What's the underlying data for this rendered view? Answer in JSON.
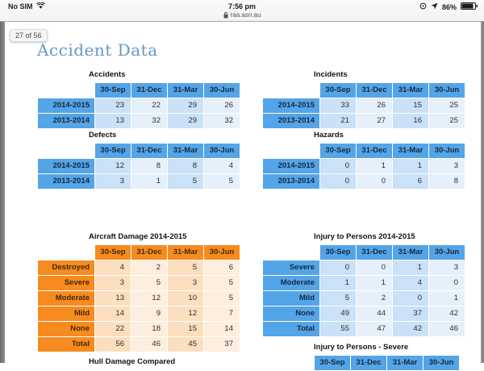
{
  "status_bar": {
    "carrier": "No SIM",
    "time": "7:56 pm",
    "url": "raa.asn.au",
    "battery_percent": "86%",
    "icons": [
      "wifi-icon",
      "lock-icon",
      "orientation-lock-icon",
      "location-arrow-icon",
      "battery-icon"
    ]
  },
  "page": {
    "page_indicator": "27 of 56",
    "title": "Accident Data",
    "clipped_left_heading": "Hull Damage Compared"
  },
  "colors": {
    "title_color": "#6598c8",
    "blue_header": "#54a4e8",
    "blue_cell_a": "#cae1f7",
    "blue_cell_b": "#e5f0fb",
    "orange_header": "#f68b1f",
    "orange_cell_a": "#fbdfbe",
    "orange_cell_b": "#fdeedd"
  },
  "tables": [
    {
      "id": "accidents",
      "title": "Accidents",
      "theme": "blue",
      "columns": [
        "30-Sep",
        "31-Dec",
        "31-Mar",
        "30-Jun"
      ],
      "rows": [
        {
          "label": "2014-2015",
          "values": [
            "23",
            "22",
            "29",
            "26"
          ]
        },
        {
          "label": "2013-2014",
          "values": [
            "13",
            "32",
            "29",
            "32"
          ]
        }
      ]
    },
    {
      "id": "incidents",
      "title": "Incidents",
      "theme": "blue",
      "columns": [
        "30-Sep",
        "31-Dec",
        "31-Mar",
        "30-Jun"
      ],
      "rows": [
        {
          "label": "2014-2015",
          "values": [
            "33",
            "26",
            "15",
            "25"
          ]
        },
        {
          "label": "2013-2014",
          "values": [
            "21",
            "27",
            "16",
            "25"
          ]
        }
      ]
    },
    {
      "id": "defects",
      "title": "Defects",
      "theme": "blue",
      "columns": [
        "30-Sep",
        "31-Dec",
        "31-Mar",
        "30-Jun"
      ],
      "rows": [
        {
          "label": "2014-2015",
          "values": [
            "12",
            "8",
            "8",
            "4"
          ]
        },
        {
          "label": "2013-2014",
          "values": [
            "3",
            "1",
            "5",
            "5"
          ]
        }
      ]
    },
    {
      "id": "hazards",
      "title": "Hazards",
      "theme": "blue",
      "columns": [
        "30-Sep",
        "31-Dec",
        "31-Mar",
        "30-Jun"
      ],
      "rows": [
        {
          "label": "2014-2015",
          "values": [
            "0",
            "1",
            "1",
            "3"
          ]
        },
        {
          "label": "2013-2014",
          "values": [
            "0",
            "0",
            "6",
            "8"
          ]
        }
      ]
    },
    {
      "id": "aircraft-damage",
      "title": "Aircraft Damage 2014-2015",
      "theme": "orange",
      "columns": [
        "30-Sep",
        "31-Dec",
        "31-Mar",
        "30-Jun"
      ],
      "rows": [
        {
          "label": "Destroyed",
          "values": [
            "4",
            "2",
            "5",
            "6"
          ]
        },
        {
          "label": "Severe",
          "values": [
            "3",
            "5",
            "3",
            "5"
          ]
        },
        {
          "label": "Moderate",
          "values": [
            "13",
            "12",
            "10",
            "5"
          ]
        },
        {
          "label": "Mild",
          "values": [
            "14",
            "9",
            "12",
            "7"
          ]
        },
        {
          "label": "None",
          "values": [
            "22",
            "18",
            "15",
            "14"
          ]
        },
        {
          "label": "Total",
          "values": [
            "56",
            "46",
            "45",
            "37"
          ]
        }
      ]
    },
    {
      "id": "injury-persons",
      "title": "Injury to Persons 2014-2015",
      "theme": "blue",
      "columns": [
        "30-Sep",
        "31-Dec",
        "31-Mar",
        "30-Jun"
      ],
      "rows": [
        {
          "label": "Severe",
          "values": [
            "0",
            "0",
            "1",
            "3"
          ]
        },
        {
          "label": "Moderate",
          "values": [
            "1",
            "1",
            "4",
            "0"
          ]
        },
        {
          "label": "Mild",
          "values": [
            "5",
            "2",
            "0",
            "1"
          ]
        },
        {
          "label": "None",
          "values": [
            "49",
            "44",
            "37",
            "42"
          ]
        },
        {
          "label": "Total",
          "values": [
            "55",
            "47",
            "42",
            "46"
          ]
        }
      ]
    },
    {
      "id": "injury-severe",
      "title": "Injury to Persons - Severe",
      "theme": "blue",
      "columns": [
        "30-Sep",
        "31-Dec",
        "31-Mar",
        "30-Jun"
      ],
      "rows": []
    }
  ]
}
